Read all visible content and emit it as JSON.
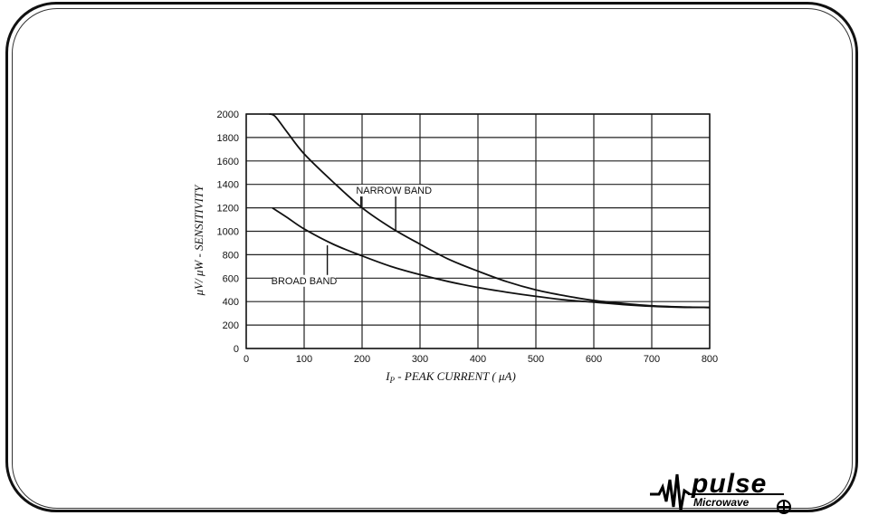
{
  "chart_data": {
    "type": "line",
    "title": "",
    "xlabel": "I_P - PEAK CURRENT ( μA)",
    "xlabel_main": "I",
    "xlabel_sub": "P",
    "xlabel_rest": " - PEAK CURRENT ( μA)",
    "ylabel": "μV/ μW - SENSITIVITY",
    "xlim": [
      0,
      800
    ],
    "ylim": [
      0,
      2000
    ],
    "x_ticks": [
      "0",
      "100",
      "200",
      "300",
      "400",
      "500",
      "600",
      "700",
      "800"
    ],
    "y_ticks": [
      "0",
      "200",
      "400",
      "600",
      "800",
      "1000",
      "1200",
      "1400",
      "1600",
      "1800",
      "2000"
    ],
    "grid": true,
    "series": [
      {
        "name": "NARROW BAND",
        "x": [
          40,
          50,
          70,
          100,
          150,
          200,
          250,
          300,
          350,
          400,
          450,
          500,
          550,
          600,
          650,
          700,
          750,
          800
        ],
        "y": [
          2000,
          1980,
          1850,
          1660,
          1420,
          1200,
          1030,
          890,
          760,
          660,
          570,
          500,
          450,
          410,
          385,
          365,
          355,
          350
        ]
      },
      {
        "name": "BROAD BAND",
        "x": [
          45,
          70,
          100,
          150,
          200,
          250,
          300,
          350,
          400,
          450,
          500,
          550,
          600,
          650,
          700,
          750,
          800
        ],
        "y": [
          1200,
          1120,
          1020,
          890,
          790,
          700,
          630,
          570,
          520,
          480,
          445,
          415,
          395,
          375,
          360,
          352,
          350
        ]
      }
    ],
    "annotations": [
      {
        "text": "NARROW BAND",
        "series": "NARROW BAND",
        "x": 255,
        "y": 1320,
        "points_to": [
          [
            198,
            1210
          ],
          [
            258,
            1000
          ]
        ]
      },
      {
        "text": "BROAD BAND",
        "series": "BROAD BAND",
        "x": 100,
        "y": 550,
        "points_to": [
          [
            140,
            880
          ]
        ]
      }
    ]
  },
  "logo": {
    "word": "pulse",
    "sub": "Microwave"
  },
  "colors": {
    "line": "#111111",
    "grid": "#222222",
    "background": "#ffffff"
  }
}
